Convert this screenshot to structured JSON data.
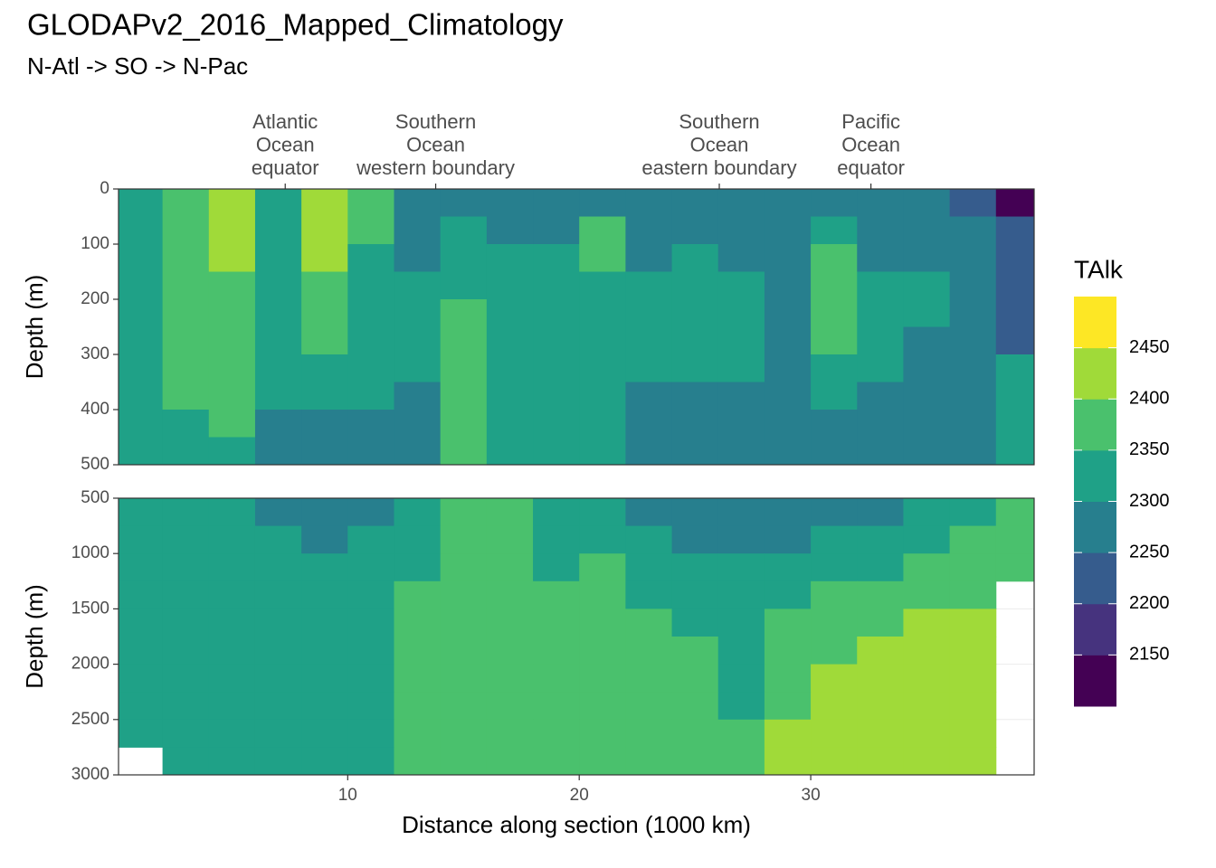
{
  "chart_data": {
    "type": "heatmap",
    "title": "GLODAPv2_2016_Mapped_Climatology",
    "subtitle": "N-Atl -> SO -> N-Pac",
    "x_label": "Distance along section (1000 km)",
    "xlim": [
      0.1,
      39.65
    ],
    "xticks": [
      10,
      20,
      30
    ],
    "x": [
      1,
      3,
      5,
      7,
      9,
      11,
      13,
      15,
      17,
      19,
      21,
      23,
      25,
      27,
      29,
      31,
      33,
      35,
      37,
      39
    ],
    "annotations": [
      {
        "x": 7.3,
        "lines": [
          "Atlantic",
          "Ocean",
          "equator"
        ]
      },
      {
        "x": 13.8,
        "lines": [
          "Southern",
          "Ocean",
          "western boundary"
        ]
      },
      {
        "x": 26.05,
        "lines": [
          "Southern",
          "Ocean",
          "eastern boundary"
        ]
      },
      {
        "x": 32.6,
        "lines": [
          "Pacific",
          "Ocean",
          "equator"
        ]
      }
    ],
    "legend": {
      "title": "TAlk",
      "bins": [
        2100,
        2150,
        2200,
        2250,
        2300,
        2350,
        2400,
        2450,
        2500
      ],
      "colors": [
        "#440154",
        "#46337e",
        "#365c8d",
        "#277f8e",
        "#1fa187",
        "#4ac16d",
        "#a0da39",
        "#fde725"
      ],
      "ticks": [
        2150,
        2200,
        2250,
        2300,
        2350,
        2400,
        2450
      ]
    },
    "panels": [
      {
        "y_label": "Depth (m)",
        "ylim": [
          0,
          500
        ],
        "yticks": [
          0,
          100,
          200,
          300,
          400,
          500
        ],
        "y": [
          25,
          75,
          125,
          175,
          225,
          275,
          325,
          375,
          425,
          475
        ],
        "z": [
          [
            2325,
            2375,
            2425,
            2325,
            2425,
            2375,
            2275,
            2275,
            2275,
            2275,
            2275,
            2275,
            2275,
            2275,
            2275,
            2275,
            2275,
            2275,
            2225,
            2125
          ],
          [
            2325,
            2375,
            2425,
            2325,
            2425,
            2375,
            2275,
            2325,
            2275,
            2275,
            2375,
            2275,
            2275,
            2275,
            2275,
            2325,
            2275,
            2275,
            2275,
            2225
          ],
          [
            2325,
            2375,
            2425,
            2325,
            2425,
            2325,
            2275,
            2325,
            2325,
            2325,
            2375,
            2275,
            2325,
            2275,
            2275,
            2375,
            2275,
            2275,
            2275,
            2225
          ],
          [
            2325,
            2375,
            2375,
            2325,
            2375,
            2325,
            2325,
            2325,
            2325,
            2325,
            2325,
            2325,
            2325,
            2325,
            2275,
            2375,
            2325,
            2325,
            2275,
            2225
          ],
          [
            2325,
            2375,
            2375,
            2325,
            2375,
            2325,
            2325,
            2375,
            2325,
            2325,
            2325,
            2325,
            2325,
            2325,
            2275,
            2375,
            2325,
            2325,
            2275,
            2225
          ],
          [
            2325,
            2375,
            2375,
            2325,
            2375,
            2325,
            2325,
            2375,
            2325,
            2325,
            2325,
            2325,
            2325,
            2325,
            2275,
            2375,
            2325,
            2275,
            2275,
            2225
          ],
          [
            2325,
            2375,
            2375,
            2325,
            2325,
            2325,
            2325,
            2375,
            2325,
            2325,
            2325,
            2325,
            2325,
            2325,
            2275,
            2325,
            2325,
            2275,
            2275,
            2325
          ],
          [
            2325,
            2375,
            2375,
            2325,
            2325,
            2325,
            2275,
            2375,
            2325,
            2325,
            2325,
            2275,
            2275,
            2275,
            2275,
            2325,
            2275,
            2275,
            2275,
            2325
          ],
          [
            2325,
            2325,
            2375,
            2275,
            2275,
            2275,
            2275,
            2375,
            2325,
            2325,
            2325,
            2275,
            2275,
            2275,
            2275,
            2275,
            2275,
            2275,
            2275,
            2325
          ],
          [
            2325,
            2325,
            2325,
            2275,
            2275,
            2275,
            2275,
            2375,
            2325,
            2325,
            2325,
            2275,
            2275,
            2275,
            2275,
            2275,
            2275,
            2275,
            2275,
            2325
          ]
        ]
      },
      {
        "y_label": "Depth (m)",
        "ylim": [
          500,
          3000
        ],
        "yticks": [
          500,
          1000,
          1500,
          2000,
          2500,
          3000
        ],
        "y": [
          625,
          875,
          1125,
          1375,
          1625,
          1875,
          2125,
          2375,
          2625,
          2875
        ],
        "z": [
          [
            2325,
            2325,
            2325,
            2275,
            2275,
            2275,
            2325,
            2375,
            2375,
            2325,
            2325,
            2275,
            2275,
            2275,
            2275,
            2275,
            2275,
            2325,
            2325,
            2375
          ],
          [
            2325,
            2325,
            2325,
            2325,
            2275,
            2325,
            2325,
            2375,
            2375,
            2325,
            2325,
            2325,
            2275,
            2275,
            2275,
            2325,
            2325,
            2325,
            2375,
            2375
          ],
          [
            2325,
            2325,
            2325,
            2325,
            2325,
            2325,
            2325,
            2375,
            2375,
            2325,
            2375,
            2325,
            2325,
            2325,
            2325,
            2325,
            2325,
            2375,
            2375,
            2375
          ],
          [
            2325,
            2325,
            2325,
            2325,
            2325,
            2325,
            2375,
            2375,
            2375,
            2375,
            2375,
            2325,
            2325,
            2325,
            2325,
            2375,
            2375,
            2375,
            2375,
            null
          ],
          [
            2325,
            2325,
            2325,
            2325,
            2325,
            2325,
            2375,
            2375,
            2375,
            2375,
            2375,
            2375,
            2325,
            2325,
            2375,
            2375,
            2375,
            2425,
            2425,
            null
          ],
          [
            2325,
            2325,
            2325,
            2325,
            2325,
            2325,
            2375,
            2375,
            2375,
            2375,
            2375,
            2375,
            2375,
            2325,
            2375,
            2375,
            2425,
            2425,
            2425,
            null
          ],
          [
            2325,
            2325,
            2325,
            2325,
            2325,
            2325,
            2375,
            2375,
            2375,
            2375,
            2375,
            2375,
            2375,
            2325,
            2375,
            2425,
            2425,
            2425,
            2425,
            null
          ],
          [
            2325,
            2325,
            2325,
            2325,
            2325,
            2325,
            2375,
            2375,
            2375,
            2375,
            2375,
            2375,
            2375,
            2325,
            2375,
            2425,
            2425,
            2425,
            2425,
            null
          ],
          [
            2325,
            2325,
            2325,
            2325,
            2325,
            2325,
            2375,
            2375,
            2375,
            2375,
            2375,
            2375,
            2375,
            2375,
            2425,
            2425,
            2425,
            2425,
            2425,
            null
          ],
          [
            null,
            2325,
            2325,
            2325,
            2325,
            2325,
            2375,
            2375,
            2375,
            2375,
            2375,
            2375,
            2375,
            2375,
            2425,
            2425,
            2425,
            2425,
            2425,
            null
          ]
        ]
      }
    ]
  }
}
